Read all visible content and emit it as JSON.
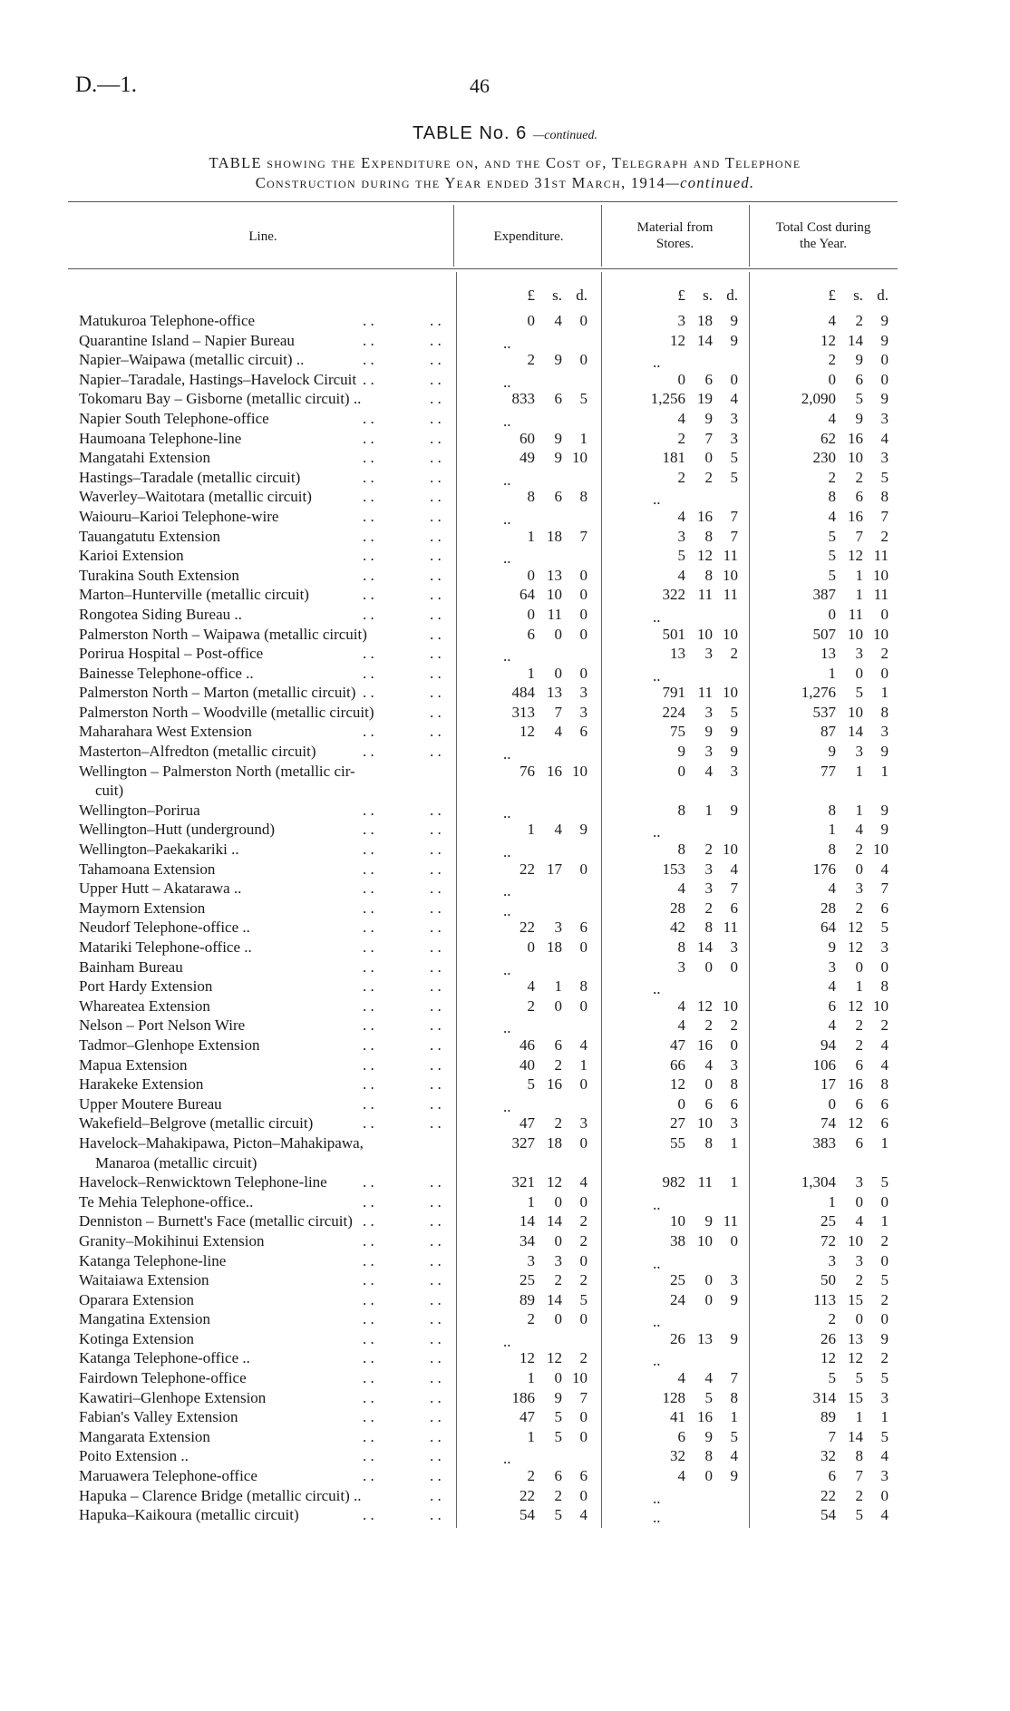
{
  "header": {
    "doc_ref": "D.—1.",
    "page_number": "46",
    "table_number": "TABLE No. 6",
    "table_number_suffix": "—continued.",
    "subtitle_line1": "TABLE showing the Expenditure on, and the Cost of, Telegraph and Telephone",
    "subtitle_line2": "Construction during the Year ended 31st March, 1914",
    "subtitle_suffix": "—continued."
  },
  "columns": {
    "line": "Line.",
    "expenditure": "Expenditure.",
    "material_1": "Material from",
    "material_2": "Stores.",
    "total_1": "Total Cost during",
    "total_2": "the Year.",
    "units": [
      "£",
      "s.",
      "d."
    ]
  },
  "nil": "..",
  "rows": [
    {
      "line": "Matukuroa Telephone-office",
      "exp": [
        "0",
        "4",
        "0"
      ],
      "mat": [
        "3",
        "18",
        "9"
      ],
      "tot": [
        "4",
        "2",
        "9"
      ]
    },
    {
      "line": "Quarantine Island – Napier Bureau",
      "exp": null,
      "mat": [
        "12",
        "14",
        "9"
      ],
      "tot": [
        "12",
        "14",
        "9"
      ]
    },
    {
      "line": "Napier–Waipawa (metallic circuit) ..",
      "exp": [
        "2",
        "9",
        "0"
      ],
      "mat": null,
      "tot": [
        "2",
        "9",
        "0"
      ]
    },
    {
      "line": "Napier–Taradale, Hastings–Havelock Circuit",
      "exp": null,
      "mat": [
        "0",
        "6",
        "0"
      ],
      "tot": [
        "0",
        "6",
        "0"
      ]
    },
    {
      "line": "Tokomaru Bay – Gisborne (metallic circuit) ..",
      "exp": [
        "833",
        "6",
        "5"
      ],
      "mat": [
        "1,256",
        "19",
        "4"
      ],
      "tot": [
        "2,090",
        "5",
        "9"
      ]
    },
    {
      "line": "Napier South Telephone-office",
      "exp": null,
      "mat": [
        "4",
        "9",
        "3"
      ],
      "tot": [
        "4",
        "9",
        "3"
      ]
    },
    {
      "line": "Haumoana Telephone-line",
      "exp": [
        "60",
        "9",
        "1"
      ],
      "mat": [
        "2",
        "7",
        "3"
      ],
      "tot": [
        "62",
        "16",
        "4"
      ]
    },
    {
      "line": "Mangatahi Extension",
      "exp": [
        "49",
        "9",
        "10"
      ],
      "mat": [
        "181",
        "0",
        "5"
      ],
      "tot": [
        "230",
        "10",
        "3"
      ]
    },
    {
      "line": "Hastings–Taradale (metallic circuit)",
      "exp": null,
      "mat": [
        "2",
        "2",
        "5"
      ],
      "tot": [
        "2",
        "2",
        "5"
      ]
    },
    {
      "line": "Waverley–Waitotara (metallic circuit)",
      "exp": [
        "8",
        "6",
        "8"
      ],
      "mat": null,
      "tot": [
        "8",
        "6",
        "8"
      ]
    },
    {
      "line": "Waiouru–Karioi Telephone-wire",
      "exp": null,
      "mat": [
        "4",
        "16",
        "7"
      ],
      "tot": [
        "4",
        "16",
        "7"
      ]
    },
    {
      "line": "Tauangatutu Extension",
      "exp": [
        "1",
        "18",
        "7"
      ],
      "mat": [
        "3",
        "8",
        "7"
      ],
      "tot": [
        "5",
        "7",
        "2"
      ]
    },
    {
      "line": "Karioi Extension",
      "exp": null,
      "mat": [
        "5",
        "12",
        "11"
      ],
      "tot": [
        "5",
        "12",
        "11"
      ]
    },
    {
      "line": "Turakina South Extension",
      "exp": [
        "0",
        "13",
        "0"
      ],
      "mat": [
        "4",
        "8",
        "10"
      ],
      "tot": [
        "5",
        "1",
        "10"
      ]
    },
    {
      "line": "Marton–Hunterville (metallic circuit)",
      "exp": [
        "64",
        "10",
        "0"
      ],
      "mat": [
        "322",
        "11",
        "11"
      ],
      "tot": [
        "387",
        "1",
        "11"
      ]
    },
    {
      "line": "Rongotea Siding Bureau ..",
      "exp": [
        "0",
        "11",
        "0"
      ],
      "mat": null,
      "tot": [
        "0",
        "11",
        "0"
      ]
    },
    {
      "line": "Palmerston North – Waipawa (metallic circuit)",
      "exp": [
        "6",
        "0",
        "0"
      ],
      "mat": [
        "501",
        "10",
        "10"
      ],
      "tot": [
        "507",
        "10",
        "10"
      ]
    },
    {
      "line": "Porirua Hospital – Post-office",
      "exp": null,
      "mat": [
        "13",
        "3",
        "2"
      ],
      "tot": [
        "13",
        "3",
        "2"
      ]
    },
    {
      "line": "Bainesse Telephone-office ..",
      "exp": [
        "1",
        "0",
        "0"
      ],
      "mat": null,
      "tot": [
        "1",
        "0",
        "0"
      ]
    },
    {
      "line": "Palmerston North – Marton (metallic circuit)",
      "exp": [
        "484",
        "13",
        "3"
      ],
      "mat": [
        "791",
        "11",
        "10"
      ],
      "tot": [
        "1,276",
        "5",
        "1"
      ]
    },
    {
      "line": "Palmerston North – Woodville (metallic circuit)",
      "exp": [
        "313",
        "7",
        "3"
      ],
      "mat": [
        "224",
        "3",
        "5"
      ],
      "tot": [
        "537",
        "10",
        "8"
      ]
    },
    {
      "line": "Maharahara West Extension",
      "exp": [
        "12",
        "4",
        "6"
      ],
      "mat": [
        "75",
        "9",
        "9"
      ],
      "tot": [
        "87",
        "14",
        "3"
      ]
    },
    {
      "line": "Masterton–Alfredton (metallic circuit)",
      "exp": null,
      "mat": [
        "9",
        "3",
        "9"
      ],
      "tot": [
        "9",
        "3",
        "9"
      ]
    },
    {
      "line": "Wellington – Palmerston North (metallic cir-",
      "line_cont": "cuit)",
      "exp": [
        "76",
        "16",
        "10"
      ],
      "mat": [
        "0",
        "4",
        "3"
      ],
      "tot": [
        "77",
        "1",
        "1"
      ]
    },
    {
      "line": "Wellington–Porirua",
      "exp": null,
      "mat": [
        "8",
        "1",
        "9"
      ],
      "tot": [
        "8",
        "1",
        "9"
      ]
    },
    {
      "line": "Wellington–Hutt (underground)",
      "exp": [
        "1",
        "4",
        "9"
      ],
      "mat": null,
      "tot": [
        "1",
        "4",
        "9"
      ]
    },
    {
      "line": "Wellington–Paekakariki ..",
      "exp": null,
      "mat": [
        "8",
        "2",
        "10"
      ],
      "tot": [
        "8",
        "2",
        "10"
      ]
    },
    {
      "line": "Tahamoana Extension",
      "exp": [
        "22",
        "17",
        "0"
      ],
      "mat": [
        "153",
        "3",
        "4"
      ],
      "tot": [
        "176",
        "0",
        "4"
      ]
    },
    {
      "line": "Upper Hutt – Akatarawa ..",
      "exp": null,
      "mat": [
        "4",
        "3",
        "7"
      ],
      "tot": [
        "4",
        "3",
        "7"
      ]
    },
    {
      "line": "Maymorn Extension",
      "exp": null,
      "mat": [
        "28",
        "2",
        "6"
      ],
      "tot": [
        "28",
        "2",
        "6"
      ]
    },
    {
      "line": "Neudorf Telephone-office ..",
      "exp": [
        "22",
        "3",
        "6"
      ],
      "mat": [
        "42",
        "8",
        "11"
      ],
      "tot": [
        "64",
        "12",
        "5"
      ]
    },
    {
      "line": "Matariki Telephone-office ..",
      "exp": [
        "0",
        "18",
        "0"
      ],
      "mat": [
        "8",
        "14",
        "3"
      ],
      "tot": [
        "9",
        "12",
        "3"
      ]
    },
    {
      "line": "Bainham Bureau",
      "exp": null,
      "mat": [
        "3",
        "0",
        "0"
      ],
      "tot": [
        "3",
        "0",
        "0"
      ]
    },
    {
      "line": "Port Hardy Extension",
      "exp": [
        "4",
        "1",
        "8"
      ],
      "mat": null,
      "tot": [
        "4",
        "1",
        "8"
      ]
    },
    {
      "line": "Whareatea Extension",
      "exp": [
        "2",
        "0",
        "0"
      ],
      "mat": [
        "4",
        "12",
        "10"
      ],
      "tot": [
        "6",
        "12",
        "10"
      ]
    },
    {
      "line": "Nelson – Port Nelson Wire",
      "exp": null,
      "mat": [
        "4",
        "2",
        "2"
      ],
      "tot": [
        "4",
        "2",
        "2"
      ]
    },
    {
      "line": "Tadmor–Glenhope Extension",
      "exp": [
        "46",
        "6",
        "4"
      ],
      "mat": [
        "47",
        "16",
        "0"
      ],
      "tot": [
        "94",
        "2",
        "4"
      ]
    },
    {
      "line": "Mapua Extension",
      "exp": [
        "40",
        "2",
        "1"
      ],
      "mat": [
        "66",
        "4",
        "3"
      ],
      "tot": [
        "106",
        "6",
        "4"
      ]
    },
    {
      "line": "Harakeke Extension",
      "exp": [
        "5",
        "16",
        "0"
      ],
      "mat": [
        "12",
        "0",
        "8"
      ],
      "tot": [
        "17",
        "16",
        "8"
      ]
    },
    {
      "line": "Upper Moutere Bureau",
      "exp": null,
      "mat": [
        "0",
        "6",
        "6"
      ],
      "tot": [
        "0",
        "6",
        "6"
      ]
    },
    {
      "line": "Wakefield–Belgrove (metallic circuit)",
      "exp": [
        "47",
        "2",
        "3"
      ],
      "mat": [
        "27",
        "10",
        "3"
      ],
      "tot": [
        "74",
        "12",
        "6"
      ]
    },
    {
      "line": "Havelock–Mahakipawa, Picton–Mahakipawa,",
      "line_cont": "Manaroa (metallic circuit)",
      "exp": [
        "327",
        "18",
        "0"
      ],
      "mat": [
        "55",
        "8",
        "1"
      ],
      "tot": [
        "383",
        "6",
        "1"
      ]
    },
    {
      "line": "Havelock–Renwicktown Telephone-line",
      "exp": [
        "321",
        "12",
        "4"
      ],
      "mat": [
        "982",
        "11",
        "1"
      ],
      "tot": [
        "1,304",
        "3",
        "5"
      ]
    },
    {
      "line": "Te Mehia Telephone-office..",
      "exp": [
        "1",
        "0",
        "0"
      ],
      "mat": null,
      "tot": [
        "1",
        "0",
        "0"
      ]
    },
    {
      "line": "Denniston – Burnett's Face (metallic circuit)",
      "exp": [
        "14",
        "14",
        "2"
      ],
      "mat": [
        "10",
        "9",
        "11"
      ],
      "tot": [
        "25",
        "4",
        "1"
      ]
    },
    {
      "line": "Granity–Mokihinui Extension",
      "exp": [
        "34",
        "0",
        "2"
      ],
      "mat": [
        "38",
        "10",
        "0"
      ],
      "tot": [
        "72",
        "10",
        "2"
      ]
    },
    {
      "line": "Katanga Telephone-line",
      "exp": [
        "3",
        "3",
        "0"
      ],
      "mat": null,
      "tot": [
        "3",
        "3",
        "0"
      ]
    },
    {
      "line": "Waitaiawa Extension",
      "exp": [
        "25",
        "2",
        "2"
      ],
      "mat": [
        "25",
        "0",
        "3"
      ],
      "tot": [
        "50",
        "2",
        "5"
      ]
    },
    {
      "line": "Oparara Extension",
      "exp": [
        "89",
        "14",
        "5"
      ],
      "mat": [
        "24",
        "0",
        "9"
      ],
      "tot": [
        "113",
        "15",
        "2"
      ]
    },
    {
      "line": "Mangatina Extension",
      "exp": [
        "2",
        "0",
        "0"
      ],
      "mat": null,
      "tot": [
        "2",
        "0",
        "0"
      ]
    },
    {
      "line": "Kotinga Extension",
      "exp": null,
      "mat": [
        "26",
        "13",
        "9"
      ],
      "tot": [
        "26",
        "13",
        "9"
      ]
    },
    {
      "line": "Katanga Telephone-office ..",
      "exp": [
        "12",
        "12",
        "2"
      ],
      "mat": null,
      "tot": [
        "12",
        "12",
        "2"
      ]
    },
    {
      "line": "Fairdown Telephone-office",
      "exp": [
        "1",
        "0",
        "10"
      ],
      "mat": [
        "4",
        "4",
        "7"
      ],
      "tot": [
        "5",
        "5",
        "5"
      ]
    },
    {
      "line": "Kawatiri–Glenhope Extension",
      "exp": [
        "186",
        "9",
        "7"
      ],
      "mat": [
        "128",
        "5",
        "8"
      ],
      "tot": [
        "314",
        "15",
        "3"
      ]
    },
    {
      "line": "Fabian's Valley Extension",
      "exp": [
        "47",
        "5",
        "0"
      ],
      "mat": [
        "41",
        "16",
        "1"
      ],
      "tot": [
        "89",
        "1",
        "1"
      ]
    },
    {
      "line": "Mangarata Extension",
      "exp": [
        "1",
        "5",
        "0"
      ],
      "mat": [
        "6",
        "9",
        "5"
      ],
      "tot": [
        "7",
        "14",
        "5"
      ]
    },
    {
      "line": "Poito Extension ..",
      "exp": null,
      "mat": [
        "32",
        "8",
        "4"
      ],
      "tot": [
        "32",
        "8",
        "4"
      ]
    },
    {
      "line": "Maruawera Telephone-office",
      "exp": [
        "2",
        "6",
        "6"
      ],
      "mat": [
        "4",
        "0",
        "9"
      ],
      "tot": [
        "6",
        "7",
        "3"
      ]
    },
    {
      "line": "Hapuka – Clarence Bridge (metallic circuit) ..",
      "exp": [
        "22",
        "2",
        "0"
      ],
      "mat": null,
      "tot": [
        "22",
        "2",
        "0"
      ]
    },
    {
      "line": "Hapuka–Kaikoura (metallic circuit)",
      "exp": [
        "54",
        "5",
        "4"
      ],
      "mat": null,
      "tot": [
        "54",
        "5",
        "4"
      ]
    }
  ]
}
